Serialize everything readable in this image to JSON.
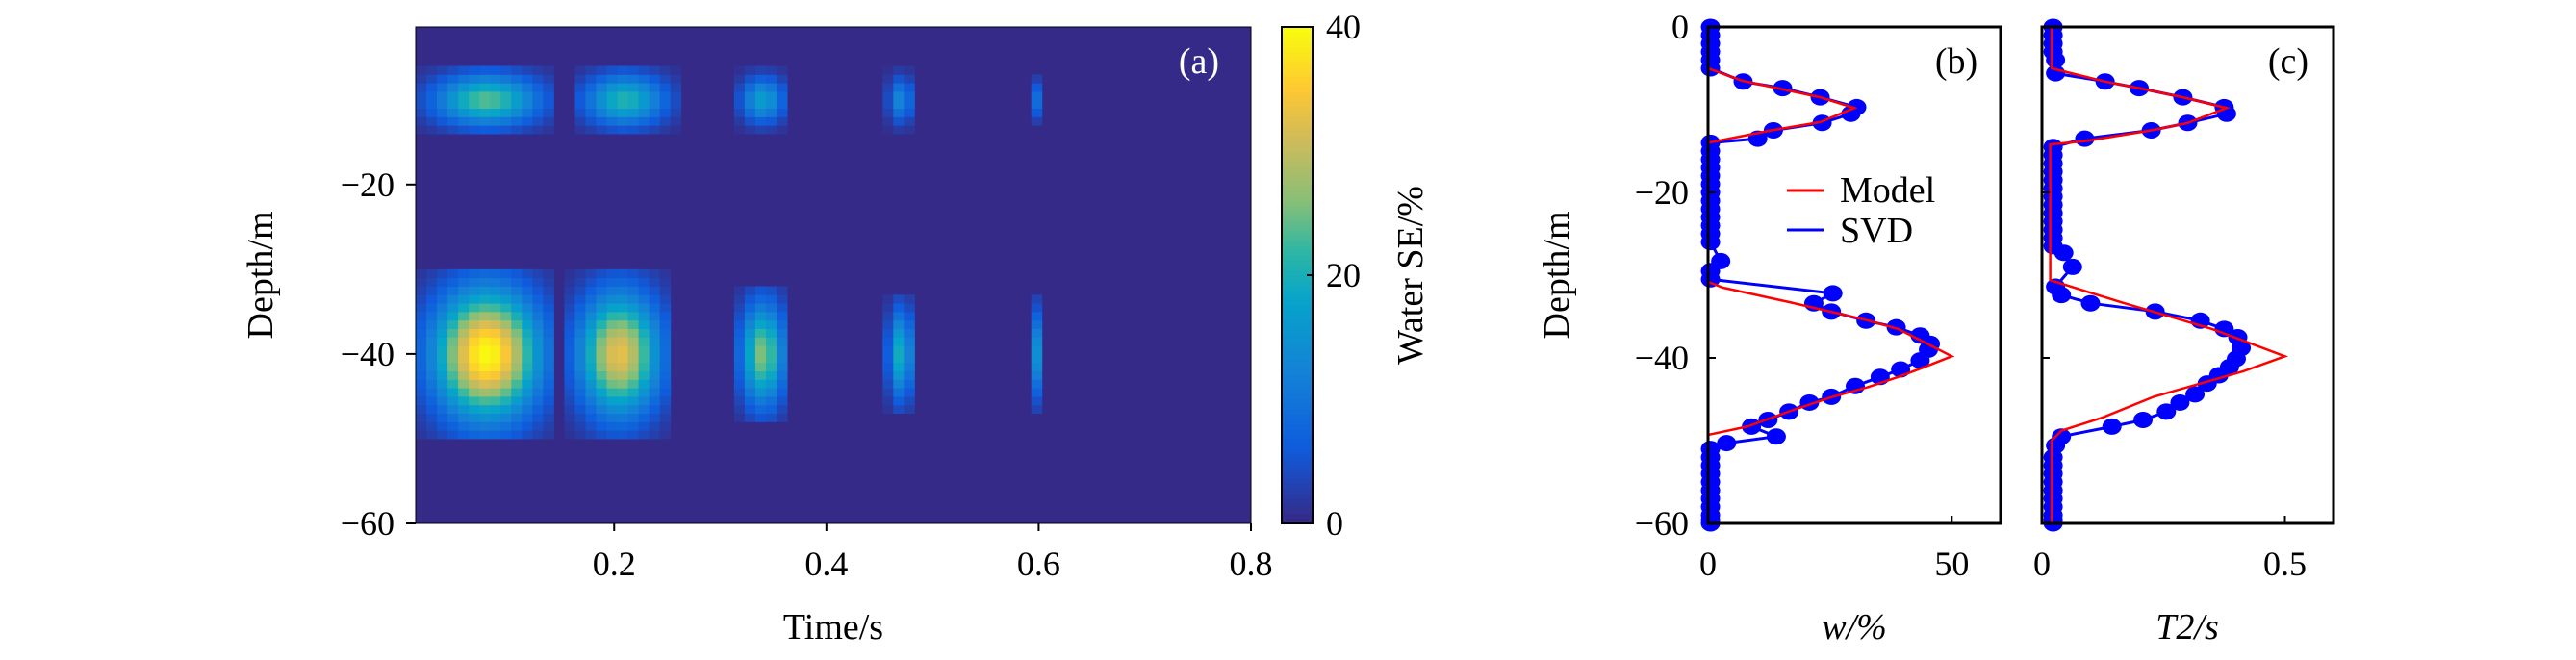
{
  "chart_data": [
    {
      "type": "heatmap",
      "panel_label": "(a)",
      "xlabel": "Time/s",
      "ylabel": "Depth/m",
      "xlim": [
        0.013,
        0.8
      ],
      "ylim": [
        -60,
        -1.4
      ],
      "xticks": [
        {
          "v": 0.2,
          "label": "0.2"
        },
        {
          "v": 0.4,
          "label": "0.4"
        },
        {
          "v": 0.6,
          "label": "0.6"
        },
        {
          "v": 0.8,
          "label": "0.8"
        }
      ],
      "yticks": [
        {
          "v": -20,
          "label": "−20"
        },
        {
          "v": -40,
          "label": "−40"
        },
        {
          "v": -60,
          "label": "−60"
        }
      ],
      "colorbar": {
        "label": "Water SE/%",
        "range": [
          0,
          40
        ],
        "ticks": [
          {
            "v": 0,
            "label": "0"
          },
          {
            "v": 20,
            "label": "20"
          },
          {
            "v": 40,
            "label": "40"
          }
        ]
      },
      "background_value": 0,
      "blobs": [
        {
          "time": 0.08,
          "depth": -40,
          "peak": 40,
          "time_halfwidth": 0.065,
          "depth_halfwidth": 10
        },
        {
          "time": 0.205,
          "depth": -40,
          "peak": 33,
          "time_halfwidth": 0.05,
          "depth_halfwidth": 9.5
        },
        {
          "time": 0.34,
          "depth": -40,
          "peak": 26,
          "time_halfwidth": 0.027,
          "depth_halfwidth": 8
        },
        {
          "time": 0.47,
          "depth": -40,
          "peak": 20,
          "time_halfwidth": 0.015,
          "depth_halfwidth": 7
        },
        {
          "time": 0.6,
          "depth": -40,
          "peak": 16,
          "time_halfwidth": 0.008,
          "depth_halfwidth": 7
        },
        {
          "time": 0.08,
          "depth": -10,
          "peak": 24,
          "time_halfwidth": 0.065,
          "depth_halfwidth": 4
        },
        {
          "time": 0.21,
          "depth": -10,
          "peak": 21,
          "time_halfwidth": 0.05,
          "depth_halfwidth": 4
        },
        {
          "time": 0.34,
          "depth": -10,
          "peak": 17,
          "time_halfwidth": 0.027,
          "depth_halfwidth": 3.5
        },
        {
          "time": 0.47,
          "depth": -10,
          "peak": 13,
          "time_halfwidth": 0.015,
          "depth_halfwidth": 3.5
        },
        {
          "time": 0.6,
          "depth": -10,
          "peak": 10,
          "time_halfwidth": 0.008,
          "depth_halfwidth": 3
        }
      ]
    },
    {
      "type": "line",
      "panel_label": "(b)",
      "xlabel": "w/%",
      "ylabel": "Depth/m",
      "xlim": [
        0,
        60
      ],
      "ylim": [
        -60,
        0
      ],
      "xticks": [
        {
          "v": 0,
          "label": "0"
        },
        {
          "v": 50,
          "label": "50"
        }
      ],
      "yticks": [
        {
          "v": 0,
          "label": "0"
        },
        {
          "v": -20,
          "label": "−20"
        },
        {
          "v": -40,
          "label": "−40"
        },
        {
          "v": -60,
          "label": "−60"
        }
      ],
      "legend": {
        "position": "center-right",
        "entries": [
          "Model",
          "SVD"
        ]
      },
      "series": [
        {
          "name": "Model",
          "color": "#ff0000",
          "markers": false,
          "x": [
            0,
            0,
            7,
            15,
            23,
            30,
            23,
            13,
            0,
            0,
            0,
            3,
            17,
            25,
            33,
            39,
            44,
            50,
            44,
            39,
            33,
            25,
            17,
            8,
            0,
            0
          ],
          "y": [
            0,
            -5,
            -6.5,
            -7.5,
            -8.5,
            -9.8,
            -11.5,
            -12.5,
            -14,
            -30.5,
            -30.8,
            -31.5,
            -33.3,
            -34.4,
            -35.5,
            -36.5,
            -38,
            -39.8,
            -41.2,
            -42.3,
            -43.5,
            -44.8,
            -46.4,
            -48.3,
            -49.3,
            -60
          ]
        },
        {
          "name": "SVD",
          "color": "#0000ff",
          "markers": true,
          "x": [
            0.5,
            0.5,
            0.5,
            0.5,
            0.5,
            0.5,
            7.2,
            15.3,
            23,
            30.5,
            29.3,
            23.4,
            13.4,
            10.2,
            0.5,
            0.5,
            0.5,
            0.5,
            0.5,
            0.5,
            0.5,
            0.5,
            0.5,
            0.5,
            0.5,
            0.5,
            0.5,
            2.6,
            0.5,
            0.5,
            25.6,
            21.7,
            25.3,
            32.4,
            38.6,
            43.5,
            45.6,
            45.2,
            43.5,
            39.5,
            35.3,
            30.2,
            25.3,
            20.8,
            16.6,
            12.3,
            8.9,
            14,
            3.8,
            0.5,
            0.5,
            0.5,
            0.5,
            0.5,
            0.5,
            0.5,
            0.5,
            0.5,
            0.5,
            0.5
          ],
          "y": [
            0,
            -1,
            -2,
            -3,
            -4,
            -5,
            -6.6,
            -7.4,
            -8.5,
            -9.7,
            -10.5,
            -11.6,
            -12.5,
            -13.5,
            -14,
            -15,
            -16,
            -17,
            -18,
            -19,
            -20,
            -21,
            -22,
            -23,
            -24,
            -25,
            -26,
            -28.3,
            -29.5,
            -30.5,
            -32.2,
            -33.4,
            -34.4,
            -35.5,
            -36.3,
            -37.3,
            -38.3,
            -39,
            -40.3,
            -41.4,
            -42.3,
            -43.4,
            -44.7,
            -45.4,
            -46.5,
            -47.5,
            -48.3,
            -49.5,
            -50.3,
            -51,
            -52,
            -53,
            -54,
            -55,
            -56,
            -57,
            -58,
            -59,
            -59.6,
            -60
          ]
        }
      ]
    },
    {
      "type": "line",
      "panel_label": "(c)",
      "xlabel": "T2/s",
      "ylabel": "",
      "xlim": [
        0,
        0.6
      ],
      "ylim": [
        -60,
        0
      ],
      "xticks": [
        {
          "v": 0,
          "label": "0"
        },
        {
          "v": 0.5,
          "label": "0.5"
        }
      ],
      "yticks": [
        {
          "v": 0,
          "label": ""
        },
        {
          "v": -20,
          "label": ""
        },
        {
          "v": -40,
          "label": ""
        },
        {
          "v": -60,
          "label": ""
        }
      ],
      "series": [
        {
          "name": "Model",
          "color": "#ff0000",
          "markers": false,
          "x": [
            0.02,
            0.02,
            0.13,
            0.2,
            0.29,
            0.38,
            0.3,
            0.225,
            0.088,
            0.017,
            0.017,
            0.017,
            0.165,
            0.35,
            0.5,
            0.415,
            0.23,
            0.125,
            0.04,
            0.02,
            0.02
          ],
          "y": [
            0,
            -5,
            -6.6,
            -7.4,
            -8.5,
            -9.8,
            -11.6,
            -12.5,
            -13.8,
            -14.2,
            -29,
            -30.6,
            -33.3,
            -36.5,
            -39.8,
            -41.6,
            -44.7,
            -47.2,
            -48.8,
            -50,
            -60
          ]
        },
        {
          "name": "SVD",
          "color": "#0000ff",
          "markers": true,
          "x": [
            0.023,
            0.023,
            0.023,
            0.023,
            0.028,
            0.028,
            0.13,
            0.2,
            0.29,
            0.375,
            0.38,
            0.3,
            0.225,
            0.088,
            0.023,
            0.023,
            0.023,
            0.023,
            0.023,
            0.023,
            0.023,
            0.023,
            0.023,
            0.023,
            0.023,
            0.023,
            0.023,
            0.045,
            0.063,
            0.028,
            0.04,
            0.1,
            0.233,
            0.326,
            0.375,
            0.403,
            0.41,
            0.4,
            0.386,
            0.364,
            0.34,
            0.315,
            0.284,
            0.256,
            0.208,
            0.144,
            0.04,
            0.028,
            0.023,
            0.023,
            0.023,
            0.023,
            0.023,
            0.023,
            0.023,
            0.023,
            0.023,
            0.023
          ],
          "y": [
            0,
            -1,
            -2,
            -3,
            -4,
            -5.6,
            -6.6,
            -7.4,
            -8.5,
            -9.7,
            -10.5,
            -11.6,
            -12.5,
            -13.5,
            -14.5,
            -15.5,
            -16.5,
            -17.5,
            -18.5,
            -19.5,
            -20.5,
            -21.5,
            -22.5,
            -23.5,
            -24.5,
            -25.5,
            -26.5,
            -27.3,
            -29,
            -31.4,
            -32.4,
            -33.4,
            -34.4,
            -35.5,
            -36.5,
            -37.5,
            -38.8,
            -40.1,
            -41.1,
            -42.1,
            -43.1,
            -44.4,
            -45.4,
            -46.5,
            -47.5,
            -48.3,
            -49.5,
            -50.6,
            -52,
            -53,
            -54,
            -55,
            -56,
            -57,
            -58,
            -59,
            -59.6,
            -60
          ]
        }
      ]
    }
  ]
}
